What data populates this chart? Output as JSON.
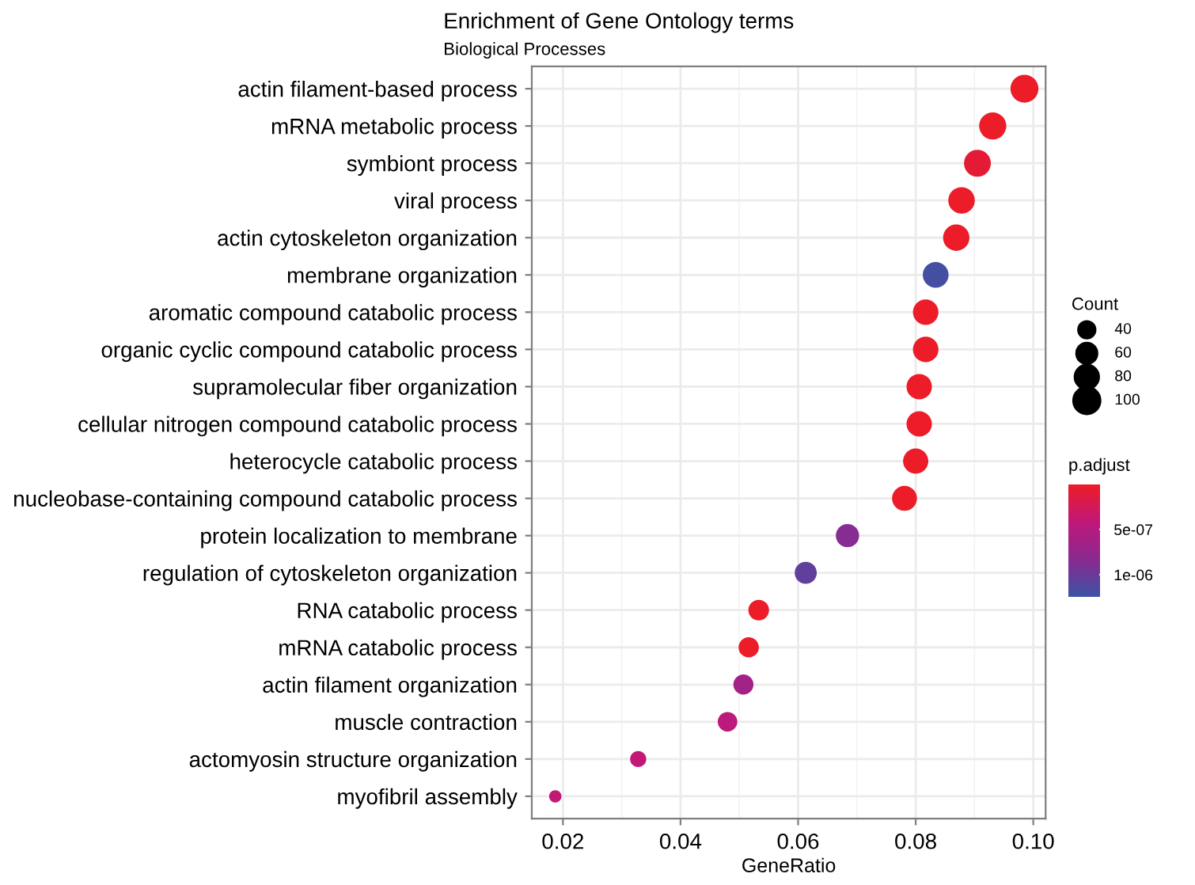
{
  "chart_data": {
    "type": "bubble",
    "title": "Enrichment of Gene Ontology terms",
    "subtitle": "Biological Processes",
    "xlabel": "GeneRatio",
    "legend_title": "Count",
    "clabel": "p.adjust",
    "categories": [
      "actin filament-based process",
      "mRNA metabolic process",
      "symbiont process",
      "viral process",
      "actin cytoskeleton organization",
      "membrane organization",
      "aromatic compound catabolic process",
      "organic cyclic compound catabolic process",
      "supramolecular fiber organization",
      "cellular nitrogen compound catabolic process",
      "heterocycle catabolic process",
      "nucleobase-containing compound catabolic process",
      "protein localization to membrane",
      "regulation of cytoskeleton organization",
      "RNA catabolic process",
      "mRNA catabolic process",
      "actin filament organization",
      "muscle contraction",
      "actomyosin structure organization",
      "myofibril assembly"
    ],
    "values": [
      0.0985,
      0.0931,
      0.0905,
      0.0878,
      0.0869,
      0.0834,
      0.0817,
      0.0817,
      0.0806,
      0.0806,
      0.08,
      0.0781,
      0.0684,
      0.0613,
      0.0533,
      0.0516,
      0.0507,
      0.048,
      0.0328,
      0.0187
    ],
    "sizes": [
      108,
      102,
      100,
      97,
      96,
      92,
      90,
      90,
      89,
      89,
      88,
      86,
      75,
      67,
      59,
      57,
      56,
      53,
      36,
      21
    ],
    "cvalues": [
      2e-08,
      2e-08,
      8e-08,
      2e-08,
      2e-08,
      1.2e-06,
      2e-08,
      2e-08,
      2e-08,
      2e-08,
      2e-08,
      2e-08,
      8.5e-07,
      1.05e-06,
      2e-08,
      2e-08,
      6.5e-07,
      4.5e-07,
      4e-07,
      4e-07
    ],
    "size_legend": [
      40,
      60,
      80,
      100
    ],
    "xlim": [
      0.0147,
      0.1021
    ],
    "xticks": [
      {
        "value": 0.02,
        "label": "0.02"
      },
      {
        "value": 0.04,
        "label": "0.04"
      },
      {
        "value": 0.06,
        "label": "0.06"
      },
      {
        "value": 0.08,
        "label": "0.08"
      },
      {
        "value": 0.1,
        "label": "0.10"
      }
    ],
    "clim": [
      0,
      1.25e-06
    ],
    "cticks": [
      {
        "value": 5e-07,
        "label": "5e-07"
      },
      {
        "value": 1e-06,
        "label": "1e-06"
      }
    ],
    "grid": true,
    "orientation": "horizontal"
  }
}
